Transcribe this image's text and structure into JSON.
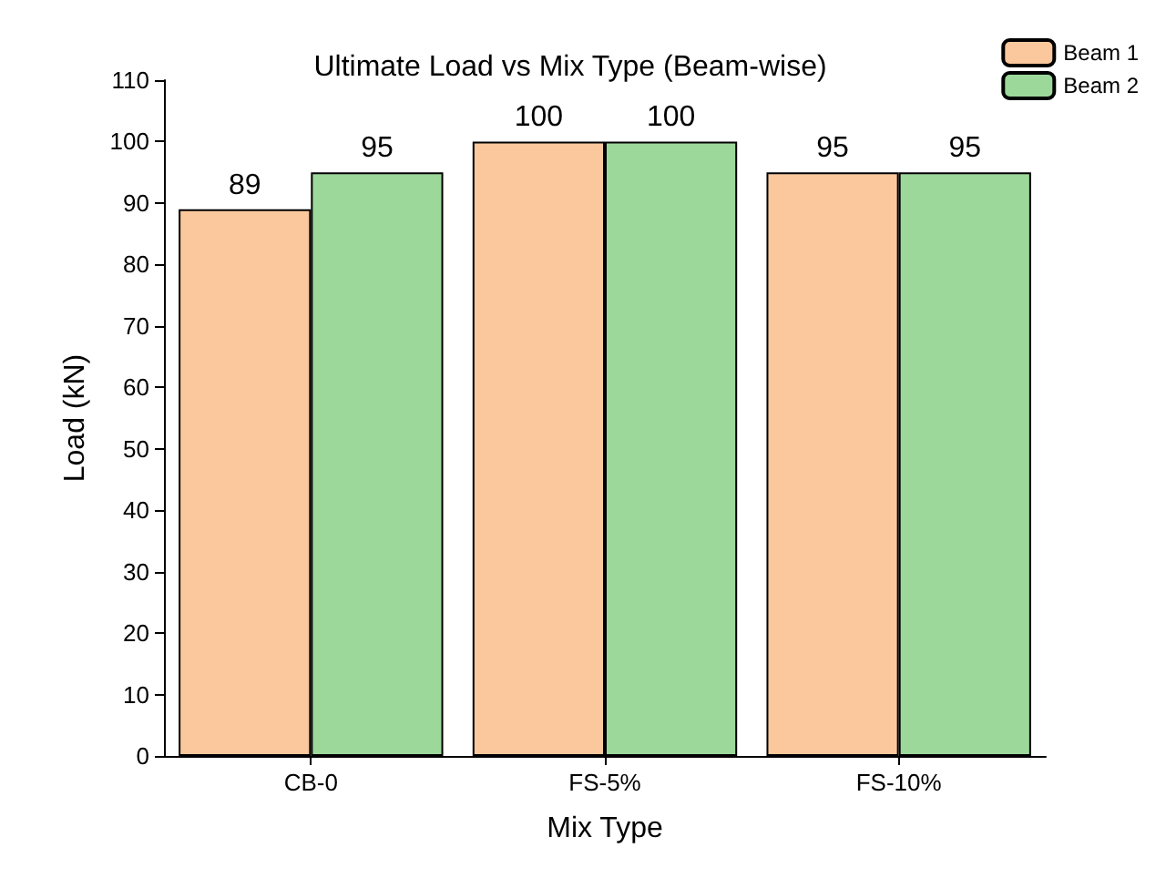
{
  "chart_data": {
    "type": "bar",
    "title": "Ultimate Load vs Mix Type (Beam-wise)",
    "xlabel": "Mix Type",
    "ylabel": "Load (kN)",
    "categories": [
      "CB-0",
      "FS-5%",
      "FS-10%"
    ],
    "series": [
      {
        "name": "Beam 1",
        "color": "#fac89c",
        "values": [
          89,
          100,
          95
        ]
      },
      {
        "name": "Beam 2",
        "color": "#9dd89b",
        "values": [
          95,
          100,
          95
        ]
      }
    ],
    "ylim": [
      0,
      110
    ],
    "yticks": [
      0,
      10,
      20,
      30,
      40,
      50,
      60,
      70,
      80,
      90,
      100,
      110
    ],
    "grid": false,
    "legend": "top right",
    "data_labels": true
  }
}
